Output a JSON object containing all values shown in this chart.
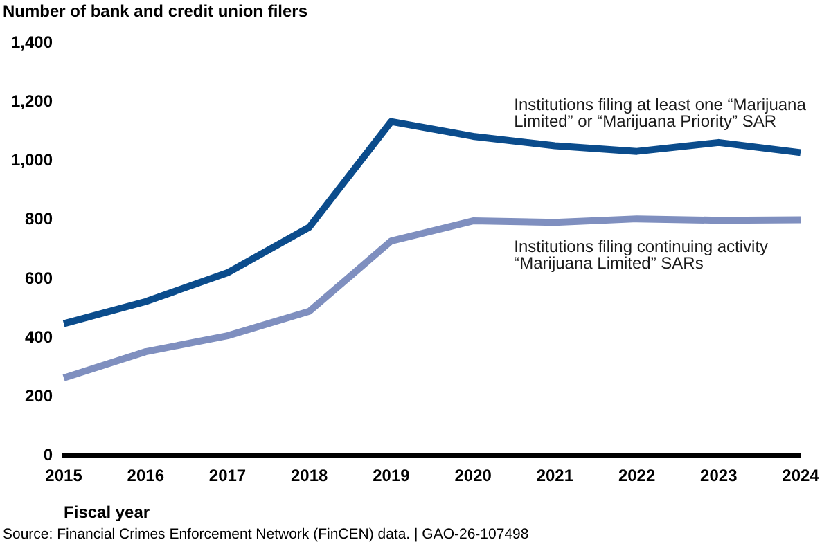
{
  "chart_data": {
    "type": "line",
    "ylabel": "Number of bank and credit union filers",
    "xlabel": "Fiscal year",
    "categories": [
      "2015",
      "2016",
      "2017",
      "2018",
      "2019",
      "2020",
      "2021",
      "2022",
      "2023",
      "2024"
    ],
    "series": [
      {
        "name": "Institutions filing at least one “Marijuana Limited” or “Marijuana Priority” SAR",
        "color": "#0b4c8c",
        "values": [
          448,
          523,
          621,
          776,
          1134,
          1084,
          1052,
          1033,
          1063,
          1029
        ]
      },
      {
        "name": "Institutions filing continuing activity “Marijuana Limited” SARs",
        "color": "#7f8fbf",
        "values": [
          264,
          353,
          407,
          490,
          729,
          797,
          792,
          804,
          799,
          801
        ]
      }
    ],
    "ylim": [
      0,
      1400
    ],
    "yticks": [
      0,
      200,
      400,
      600,
      800,
      {
        "value": 1000,
        "label": "1,000"
      },
      {
        "value": 1200,
        "label": "1,200"
      },
      {
        "value": 1400,
        "label": "1,400"
      }
    ],
    "grid": false,
    "legend": false,
    "marker": "none",
    "line_style": "solid",
    "annotations": [
      "Source: Financial Crimes Enforcement Network (FinCEN) data.  |  GAO-26-107498"
    ]
  }
}
